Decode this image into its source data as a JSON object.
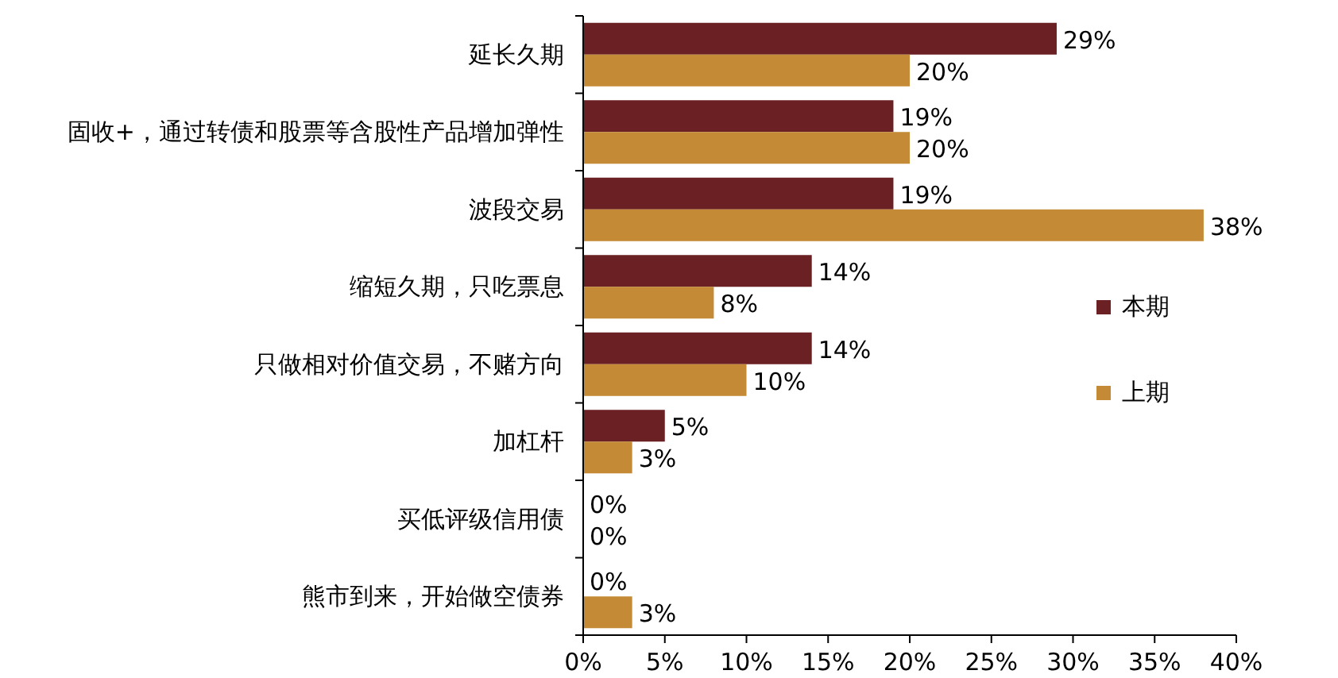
{
  "chart_data": {
    "type": "bar",
    "orientation": "horizontal",
    "categories": [
      "延长久期",
      "固收+，通过转债和股票等含股性产品增加弹性",
      "波段交易",
      "缩短久期，只吃票息",
      "只做相对价值交易，不赌方向",
      "加杠杆",
      "买低评级信用债",
      "熊市到来，开始做空债券"
    ],
    "series": [
      {
        "name": "本期",
        "color": "#6b2123",
        "values": [
          29,
          19,
          19,
          14,
          14,
          5,
          0,
          0
        ],
        "value_labels": [
          "29%",
          "19%",
          "19%",
          "14%",
          "14%",
          "5%",
          "0%",
          "0%"
        ]
      },
      {
        "name": "上期",
        "color": "#c48a35",
        "values": [
          20,
          20,
          38,
          8,
          10,
          3,
          0,
          3
        ],
        "value_labels": [
          "20%",
          "20%",
          "38%",
          "8%",
          "10%",
          "3%",
          "0%",
          "3%"
        ]
      }
    ],
    "xlim": [
      0,
      40
    ],
    "xticks": [
      {
        "value": 0,
        "label": "0%"
      },
      {
        "value": 5,
        "label": "5%"
      },
      {
        "value": 10,
        "label": "10%"
      },
      {
        "value": 15,
        "label": "15%"
      },
      {
        "value": 20,
        "label": "20%"
      },
      {
        "value": 25,
        "label": "25%"
      },
      {
        "value": 30,
        "label": "30%"
      },
      {
        "value": 35,
        "label": "35%"
      },
      {
        "value": 40,
        "label": "40%"
      }
    ],
    "grid": false,
    "legend": "right"
  }
}
